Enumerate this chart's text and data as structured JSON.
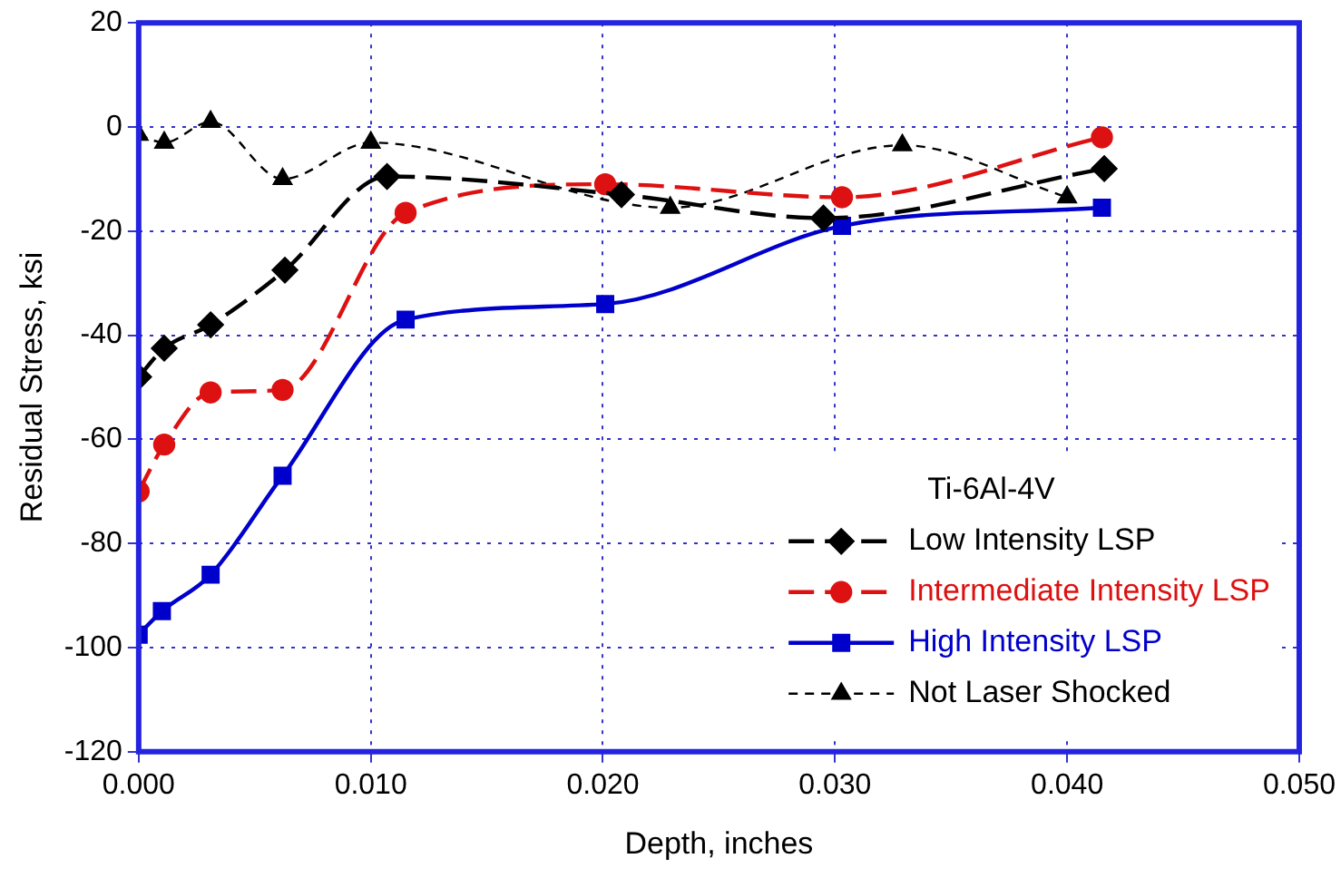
{
  "chart_data": {
    "type": "line",
    "xlabel": "Depth, inches",
    "ylabel": "Residual Stress, ksi",
    "annotations": [
      "Ti-6Al-4V"
    ],
    "series": [
      {
        "name": "Low Intensity LSP",
        "color": "#000000",
        "marker": "diamond",
        "line_style": "dashed",
        "x": [
          0,
          0.0011,
          0.0031,
          0.0063,
          0.0107,
          0.0208,
          0.0295,
          0.0416
        ],
        "values": [
          -48,
          -42.5,
          -38,
          -27.5,
          -9.5,
          -13,
          -17.5,
          -8
        ]
      },
      {
        "name": "Intermediate Intensity LSP",
        "color": "#dd1111",
        "marker": "circle",
        "line_style": "dashed",
        "x": [
          0,
          0.0011,
          0.0031,
          0.0062,
          0.0115,
          0.0201,
          0.0303,
          0.0415
        ],
        "values": [
          -70,
          -61,
          -51,
          -50.5,
          -16.5,
          -11,
          -13.5,
          -2
        ]
      },
      {
        "name": "High Intensity LSP",
        "color": "#0000cc",
        "marker": "square",
        "line_style": "solid",
        "x": [
          0,
          0.001,
          0.0031,
          0.0062,
          0.0115,
          0.0201,
          0.0303,
          0.0415
        ],
        "values": [
          -97.5,
          -93,
          -86,
          -67,
          -37,
          -34,
          -19,
          -15.5
        ]
      },
      {
        "name": "Not Laser Shocked",
        "color": "#000000",
        "marker": "triangle",
        "line_style": "dotted",
        "x": [
          0,
          0.0011,
          0.0031,
          0.0062,
          0.01,
          0.0229,
          0.0329,
          0.04
        ],
        "values": [
          -1.5,
          -3,
          1,
          -10,
          -3,
          -15.5,
          -3.5,
          -13.5
        ]
      }
    ],
    "xlim": [
      0,
      0.05
    ],
    "xticks": [
      {
        "value": 0,
        "label": "0.000"
      },
      {
        "value": 0.01,
        "label": "0.010"
      },
      {
        "value": 0.02,
        "label": "0.020"
      },
      {
        "value": 0.03,
        "label": "0.030"
      },
      {
        "value": 0.04,
        "label": "0.040"
      },
      {
        "value": 0.05,
        "label": "0.050"
      }
    ],
    "ylim": [
      -120,
      20
    ],
    "yticks": [
      -120,
      -100,
      -80,
      -60,
      -40,
      -20,
      0,
      20
    ],
    "grid": true,
    "legend": "bottom right"
  }
}
